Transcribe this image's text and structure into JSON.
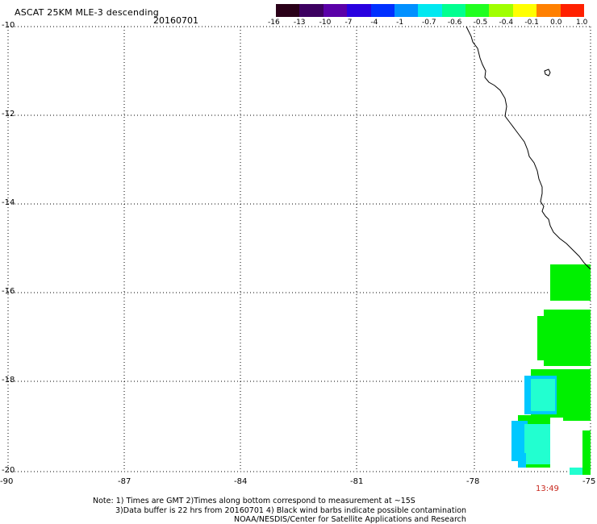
{
  "header": {
    "title": "ASCAT 25KM MLE-3 descending",
    "date": "20160701"
  },
  "colorbar": {
    "labels": [
      "-16",
      "-13",
      "-10",
      "-7",
      "-4",
      "-1",
      "-0.7",
      "-0.6",
      "-0.5",
      "-0.4",
      "-0.1",
      "0.0",
      "1.0"
    ],
    "colors": [
      "#2a0018",
      "#3c0060",
      "#5a00a8",
      "#2800e0",
      "#0030ff",
      "#0090ff",
      "#00e8f0",
      "#00ff90",
      "#20ff20",
      "#a0ff00",
      "#ffff00",
      "#ff8000",
      "#ff2000"
    ]
  },
  "axes": {
    "lat_labels": [
      "-10",
      "-12",
      "-14",
      "-16",
      "-18",
      "-20"
    ],
    "lon_labels": [
      "-90",
      "-87",
      "-84",
      "-81",
      "-78",
      "-75"
    ]
  },
  "map": {
    "time_label": "13:49",
    "coastline_color": "#000000",
    "data_colors": {
      "green": "#00f000",
      "cyan": "#22ffd0",
      "blue": "#00c8ff"
    }
  },
  "notes": {
    "line1": "Note: 1) Times are GMT 2)Times along bottom correspond to measurement at ~15S",
    "line2": "3)Data buffer is 22 hrs from 20160701 4) Black wind barbs indicate possible contamination",
    "line3": "NOAA/NESDIS/Center for Satellite Applications and Research"
  }
}
